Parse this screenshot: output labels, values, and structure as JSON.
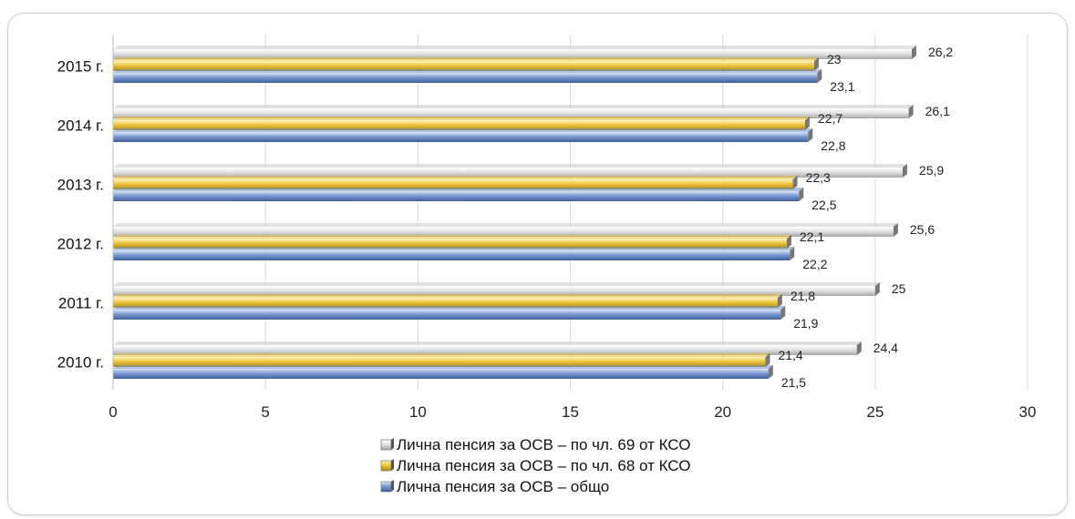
{
  "chart_data": {
    "type": "bar",
    "orientation": "horizontal",
    "categories": [
      "2010 г.",
      "2011 г.",
      "2012 г.",
      "2013 г.",
      "2014 г.",
      "2015 г."
    ],
    "series": [
      {
        "name": "Лична пенсия за ОСВ – по чл. 69 от КСО",
        "values": [
          24.4,
          25,
          25.6,
          25.9,
          26.1,
          26.2
        ],
        "labels": [
          "24,4",
          "25",
          "25,6",
          "25,9",
          "26,1",
          "26,2"
        ],
        "color": "#c8c8c8"
      },
      {
        "name": "Лична пенсия за ОСВ – по чл. 68 от КСО",
        "values": [
          21.4,
          21.8,
          22.1,
          22.3,
          22.7,
          23
        ],
        "labels": [
          "21,4",
          "21,8",
          "22,1",
          "22,3",
          "22,7",
          "23"
        ],
        "color": "#e8c13a"
      },
      {
        "name": "Лична пенсия за ОСВ – общо",
        "values": [
          21.5,
          21.9,
          22.2,
          22.5,
          22.8,
          23.1
        ],
        "labels": [
          "21,5",
          "21,9",
          "22,2",
          "22,5",
          "22,8",
          "23,1"
        ],
        "color": "#6f8fc8"
      }
    ],
    "xlim": [
      0,
      30
    ],
    "xticks": [
      0,
      5,
      10,
      15,
      20,
      25,
      30
    ],
    "grid": "vertical",
    "legend_position": "bottom",
    "title": "",
    "xlabel": "",
    "ylabel": ""
  }
}
